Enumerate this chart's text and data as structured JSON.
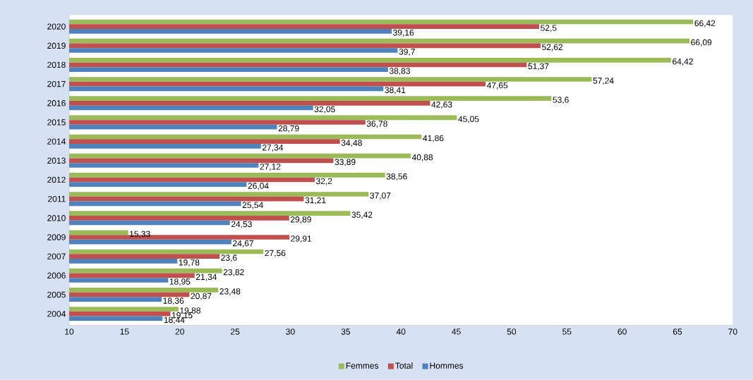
{
  "chart_data": {
    "type": "bar",
    "orientation": "horizontal",
    "categories": [
      "2020",
      "2019",
      "2018",
      "2017",
      "2016",
      "2015",
      "2014",
      "2013",
      "2012",
      "2011",
      "2010",
      "2009",
      "2007",
      "2006",
      "2005",
      "2004"
    ],
    "series": [
      {
        "name": "Femmes",
        "color": "#9bbb59",
        "values": [
          66.42,
          66.09,
          64.42,
          57.24,
          53.6,
          45.05,
          41.86,
          40.88,
          38.56,
          37.07,
          35.42,
          15.33,
          27.56,
          23.82,
          23.48,
          19.88
        ],
        "value_labels": [
          "66,42",
          "66,09",
          "64,42",
          "57,24",
          "53,6",
          "45,05",
          "41,86",
          "40,88",
          "38,56",
          "37,07",
          "35,42",
          "15,33",
          "27,56",
          "23,82",
          "23,48",
          "19,88"
        ]
      },
      {
        "name": "Total",
        "color": "#c0504d",
        "values": [
          52.5,
          52.62,
          51.37,
          47.65,
          42.63,
          36.78,
          34.48,
          33.89,
          32.2,
          31.21,
          29.89,
          29.91,
          23.6,
          21.34,
          20.87,
          19.15
        ],
        "value_labels": [
          "52,5",
          "52,62",
          "51,37",
          "47,65",
          "42,63",
          "36,78",
          "34,48",
          "33,89",
          "32,2",
          "31,21",
          "29,89",
          "29,91",
          "23,6",
          "21,34",
          "20,87",
          "19,15"
        ]
      },
      {
        "name": "Hommes",
        "color": "#4f81bd",
        "values": [
          39.16,
          39.7,
          38.83,
          38.41,
          32.05,
          28.79,
          27.34,
          27.12,
          26.04,
          25.54,
          24.53,
          24.67,
          19.78,
          18.95,
          18.36,
          18.44
        ],
        "value_labels": [
          "39,16",
          "39,7",
          "38,83",
          "38,41",
          "32,05",
          "28,79",
          "27,34",
          "27,12",
          "26,04",
          "25,54",
          "24,53",
          "24,67",
          "19,78",
          "18,95",
          "18,36",
          "18,44"
        ]
      }
    ],
    "xlim": [
      10,
      70
    ],
    "xticks": [
      10,
      15,
      20,
      25,
      30,
      35,
      40,
      45,
      50,
      55,
      60,
      65,
      70
    ],
    "data_labels": false,
    "legend": "bottom"
  }
}
